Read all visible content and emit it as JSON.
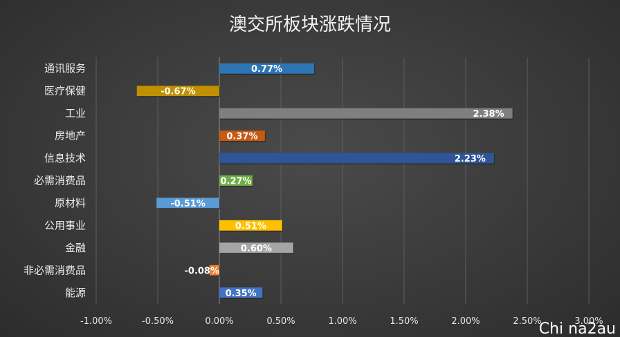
{
  "chart_data": {
    "type": "bar",
    "orientation": "horizontal",
    "title": "澳交所板块涨跌情况",
    "categories": [
      "通讯服务",
      "医疗保健",
      "工业",
      "房地产",
      "信息技术",
      "必需消费品",
      "原材料",
      "公用事业",
      "金融",
      "非必需消费品",
      "能源"
    ],
    "values": [
      0.77,
      -0.67,
      2.38,
      0.37,
      2.23,
      0.27,
      -0.51,
      0.51,
      0.6,
      -0.08,
      0.35
    ],
    "data_labels": [
      "0.77%",
      "-0.67%",
      "2.38%",
      "0.37%",
      "2.23%",
      "0.27%",
      "-0.51%",
      "0.51%",
      "0.60%",
      "-0.08%",
      "0.35%"
    ],
    "colors": [
      "#2e75b6",
      "#bf9000",
      "#7f7f7f",
      "#c55a11",
      "#2f5597",
      "#70ad47",
      "#5b9bd5",
      "#ffc000",
      "#a5a5a5",
      "#ed7d31",
      "#4472c4"
    ],
    "xlim": [
      -1.0,
      3.0
    ],
    "xticks": [
      -1.0,
      -0.5,
      0,
      0.5,
      1.0,
      1.5,
      2.0,
      2.5,
      3.0
    ],
    "xtick_labels": [
      "-1.00%",
      "-0.50%",
      "0.00%",
      "0.50%",
      "1.00%",
      "1.50%",
      "2.00%",
      "2.50%",
      "3.00%"
    ],
    "grid": "vertical",
    "legend": "none"
  },
  "watermark": "Chi na2au"
}
